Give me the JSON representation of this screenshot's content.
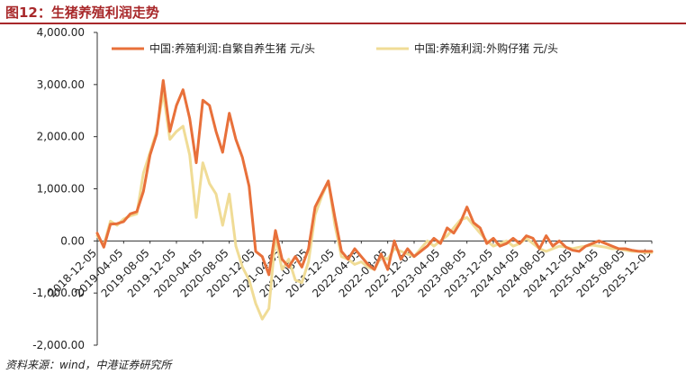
{
  "header": {
    "title": "图12：生猪养殖利润走势"
  },
  "footer": {
    "source": "资料来源：wind，中港证券研究所"
  },
  "chart_data": {
    "type": "line",
    "title": "图12：生猪养殖利润走势",
    "xlabel": "",
    "ylabel": "",
    "ylim": [
      -2000,
      4000
    ],
    "yticks": [
      "4,000.00",
      "3,000.00",
      "2,000.00",
      "1,000.00",
      "0.00",
      "-1,000.00",
      "-2,000.00"
    ],
    "ytick_values": [
      4000,
      3000,
      2000,
      1000,
      0,
      -1000,
      -2000
    ],
    "xticks": [
      "2018-12-05",
      "2019-04-05",
      "2019-08-05",
      "2019-12-05",
      "2020-04-05",
      "2020-08-05",
      "2020-12-05",
      "2021-04-05",
      "2021-08-05",
      "2021-12-05",
      "2022-04-05",
      "2022-08-05",
      "2022-12-05",
      "2023-04-05",
      "2023-08-05",
      "2023-12-05",
      "2024-04-05",
      "2024-08-05",
      "2024-12-05",
      "2025-04-05",
      "2025-08-05",
      "2025-12-05"
    ],
    "x_range": [
      0,
      84
    ],
    "legend_position": "top",
    "series": [
      {
        "name": "中国:养殖利润:自繁自养生猪  元/头",
        "color": "#e8703a",
        "points": [
          [
            0,
            150
          ],
          [
            1,
            -120
          ],
          [
            2,
            320
          ],
          [
            3,
            330
          ],
          [
            4,
            370
          ],
          [
            5,
            520
          ],
          [
            6,
            560
          ],
          [
            7,
            950
          ],
          [
            8,
            1650
          ],
          [
            9,
            2050
          ],
          [
            10,
            3080
          ],
          [
            11,
            2100
          ],
          [
            12,
            2600
          ],
          [
            13,
            2900
          ],
          [
            14,
            2350
          ],
          [
            15,
            1500
          ],
          [
            16,
            2700
          ],
          [
            17,
            2600
          ],
          [
            18,
            2100
          ],
          [
            19,
            1700
          ],
          [
            20,
            2450
          ],
          [
            21,
            1950
          ],
          [
            22,
            1600
          ],
          [
            23,
            1050
          ],
          [
            24,
            -200
          ],
          [
            25,
            -300
          ],
          [
            26,
            -650
          ],
          [
            27,
            200
          ],
          [
            28,
            -350
          ],
          [
            29,
            -500
          ],
          [
            30,
            -300
          ],
          [
            31,
            -500
          ],
          [
            32,
            -150
          ],
          [
            33,
            650
          ],
          [
            34,
            900
          ],
          [
            35,
            1150
          ],
          [
            36,
            450
          ],
          [
            37,
            -200
          ],
          [
            38,
            -350
          ],
          [
            39,
            -150
          ],
          [
            40,
            -300
          ],
          [
            41,
            -450
          ],
          [
            42,
            -550
          ],
          [
            43,
            -250
          ],
          [
            44,
            -550
          ],
          [
            45,
            0
          ],
          [
            46,
            -350
          ],
          [
            47,
            -150
          ],
          [
            48,
            -300
          ],
          [
            49,
            -200
          ],
          [
            50,
            -100
          ],
          [
            51,
            50
          ],
          [
            52,
            -50
          ],
          [
            53,
            250
          ],
          [
            54,
            150
          ],
          [
            55,
            350
          ],
          [
            56,
            650
          ],
          [
            57,
            350
          ],
          [
            58,
            250
          ],
          [
            59,
            -50
          ],
          [
            60,
            50
          ],
          [
            61,
            -100
          ],
          [
            62,
            -50
          ],
          [
            63,
            50
          ],
          [
            64,
            -50
          ],
          [
            65,
            100
          ],
          [
            66,
            50
          ],
          [
            67,
            -150
          ],
          [
            68,
            100
          ],
          [
            69,
            -100
          ],
          [
            70,
            0
          ],
          [
            71,
            -120
          ],
          [
            72,
            -180
          ],
          [
            73,
            -200
          ],
          [
            74,
            -100
          ],
          [
            75,
            -50
          ],
          [
            76,
            0
          ],
          [
            77,
            -50
          ],
          [
            78,
            -100
          ],
          [
            79,
            -150
          ],
          [
            80,
            -150
          ],
          [
            81,
            -180
          ],
          [
            82,
            -200
          ],
          [
            83,
            -200
          ],
          [
            84,
            -200
          ]
        ]
      },
      {
        "name": "中国:养殖利润:外购仔猪  元/头",
        "color": "#f0dc96",
        "points": [
          [
            0,
            100
          ],
          [
            1,
            -80
          ],
          [
            2,
            380
          ],
          [
            3,
            300
          ],
          [
            4,
            420
          ],
          [
            5,
            480
          ],
          [
            6,
            520
          ],
          [
            7,
            1300
          ],
          [
            8,
            1700
          ],
          [
            9,
            2100
          ],
          [
            10,
            2850
          ],
          [
            11,
            1950
          ],
          [
            12,
            2100
          ],
          [
            13,
            2200
          ],
          [
            14,
            1650
          ],
          [
            15,
            450
          ],
          [
            16,
            1500
          ],
          [
            17,
            1100
          ],
          [
            18,
            900
          ],
          [
            19,
            300
          ],
          [
            20,
            900
          ],
          [
            21,
            -100
          ],
          [
            22,
            -500
          ],
          [
            23,
            -750
          ],
          [
            24,
            -1200
          ],
          [
            25,
            -1500
          ],
          [
            26,
            -1300
          ],
          [
            27,
            100
          ],
          [
            28,
            -550
          ],
          [
            29,
            -350
          ],
          [
            30,
            -750
          ],
          [
            31,
            -800
          ],
          [
            32,
            -400
          ],
          [
            33,
            500
          ],
          [
            34,
            850
          ],
          [
            35,
            1150
          ],
          [
            36,
            300
          ],
          [
            37,
            -300
          ],
          [
            38,
            -350
          ],
          [
            39,
            -450
          ],
          [
            40,
            -400
          ],
          [
            41,
            -500
          ],
          [
            42,
            -550
          ],
          [
            43,
            -300
          ],
          [
            44,
            -350
          ],
          [
            45,
            -150
          ],
          [
            46,
            -200
          ],
          [
            47,
            -250
          ],
          [
            48,
            -300
          ],
          [
            49,
            -150
          ],
          [
            50,
            0
          ],
          [
            51,
            -100
          ],
          [
            52,
            0
          ],
          [
            53,
            100
          ],
          [
            54,
            250
          ],
          [
            55,
            400
          ],
          [
            56,
            450
          ],
          [
            57,
            300
          ],
          [
            58,
            150
          ],
          [
            59,
            0
          ],
          [
            60,
            -100
          ],
          [
            61,
            -50
          ],
          [
            62,
            0
          ],
          [
            63,
            -100
          ],
          [
            64,
            -50
          ],
          [
            65,
            50
          ],
          [
            66,
            -50
          ],
          [
            67,
            -150
          ],
          [
            68,
            -200
          ],
          [
            69,
            -150
          ],
          [
            70,
            -100
          ],
          [
            71,
            -120
          ],
          [
            72,
            -150
          ],
          [
            73,
            -120
          ],
          [
            74,
            -100
          ],
          [
            75,
            -80
          ],
          [
            76,
            -100
          ],
          [
            77,
            -120
          ],
          [
            78,
            -150
          ],
          [
            79,
            -150
          ],
          [
            80,
            -180
          ],
          [
            81,
            -200
          ],
          [
            82,
            -200
          ],
          [
            83,
            -220
          ],
          [
            84,
            -220
          ]
        ]
      }
    ]
  }
}
